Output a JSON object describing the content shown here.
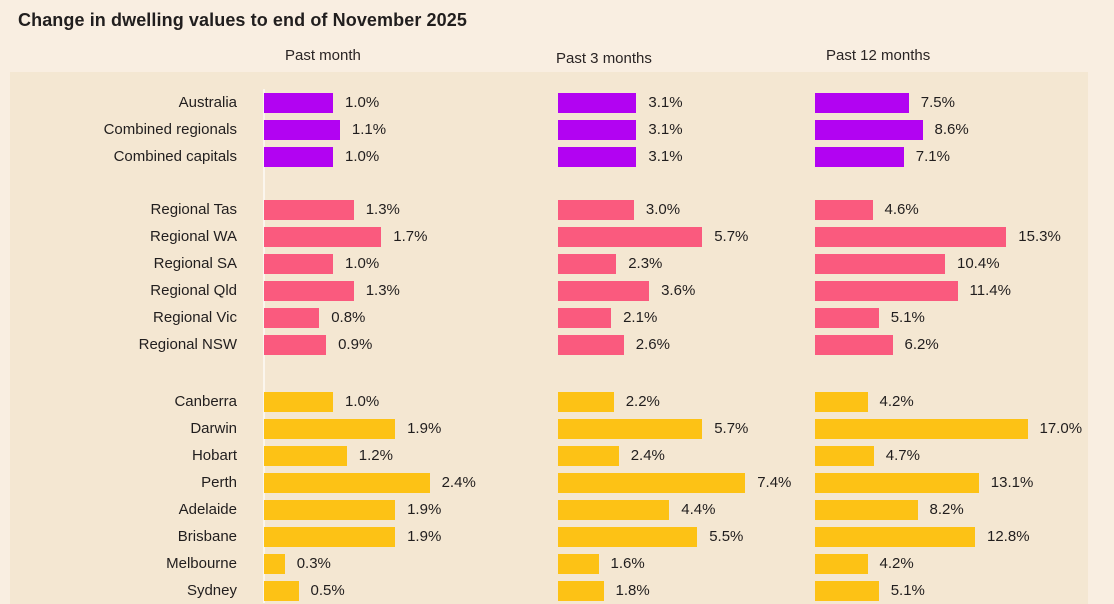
{
  "title": "Change in dwelling values to end of November 2025",
  "columns": [
    "Past month",
    "Past 3 months",
    "Past 12 months"
  ],
  "colors": {
    "national": "#b203f2",
    "regional": "#fa5a7e",
    "capital": "#fdc215",
    "page_background": "#f9eee1",
    "panel_background": "#f4e7d2"
  },
  "chart_data": {
    "type": "bar",
    "orientation": "horizontal",
    "title": "Change in dwelling values to end of November 2025",
    "column_headers": [
      "Past month",
      "Past 3 months",
      "Past 12 months"
    ],
    "value_format": "one_decimal_percent",
    "legend_position": "none",
    "grid": false,
    "groups": [
      {
        "name": "national",
        "color": "#b203f2",
        "rows": [
          {
            "label": "Australia",
            "values": [
              1.0,
              3.1,
              7.5
            ]
          },
          {
            "label": "Combined regionals",
            "values": [
              1.1,
              3.1,
              8.6
            ]
          },
          {
            "label": "Combined capitals",
            "values": [
              1.0,
              3.1,
              7.1
            ]
          }
        ]
      },
      {
        "name": "regional",
        "color": "#fa5a7e",
        "rows": [
          {
            "label": "Regional Tas",
            "values": [
              1.3,
              3.0,
              4.6
            ]
          },
          {
            "label": "Regional WA",
            "values": [
              1.7,
              5.7,
              15.3
            ]
          },
          {
            "label": "Regional SA",
            "values": [
              1.0,
              2.3,
              10.4
            ]
          },
          {
            "label": "Regional Qld",
            "values": [
              1.3,
              3.6,
              11.4
            ]
          },
          {
            "label": "Regional Vic",
            "values": [
              0.8,
              2.1,
              5.1
            ]
          },
          {
            "label": "Regional NSW",
            "values": [
              0.9,
              2.6,
              6.2
            ]
          }
        ]
      },
      {
        "name": "capital",
        "color": "#fdc215",
        "rows": [
          {
            "label": "Canberra",
            "values": [
              1.0,
              2.2,
              4.2
            ]
          },
          {
            "label": "Darwin",
            "values": [
              1.9,
              5.7,
              17.0
            ]
          },
          {
            "label": "Hobart",
            "values": [
              1.2,
              2.4,
              4.7
            ]
          },
          {
            "label": "Perth",
            "values": [
              2.4,
              7.4,
              13.1
            ]
          },
          {
            "label": "Adelaide",
            "values": [
              1.9,
              4.4,
              8.2
            ]
          },
          {
            "label": "Brisbane",
            "values": [
              1.9,
              5.5,
              12.8
            ]
          },
          {
            "label": "Melbourne",
            "values": [
              0.3,
              1.6,
              4.2
            ]
          },
          {
            "label": "Sydney",
            "values": [
              0.5,
              1.8,
              5.1
            ]
          }
        ]
      }
    ]
  }
}
